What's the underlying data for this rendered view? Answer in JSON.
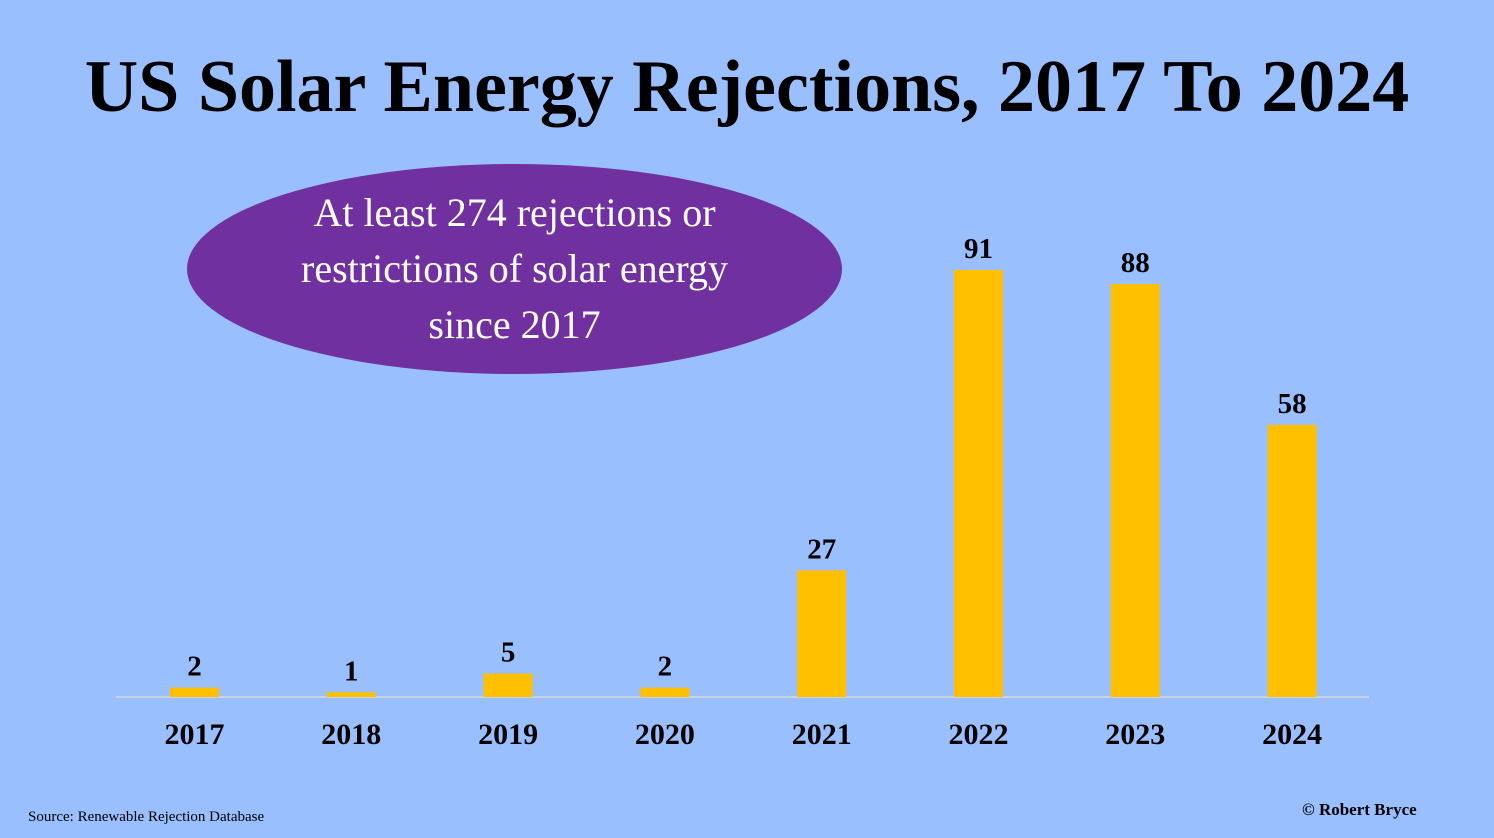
{
  "chart_data": {
    "type": "bar",
    "title": "US Solar Energy Rejections, 2017 To 2024",
    "categories": [
      "2017",
      "2018",
      "2019",
      "2020",
      "2021",
      "2022",
      "2023",
      "2024"
    ],
    "values": [
      2,
      1,
      5,
      2,
      27,
      91,
      88,
      58
    ],
    "ylim": [
      0,
      91
    ],
    "bar_color": "#ffc000",
    "axis_color": "#d9d9d9",
    "grid": false,
    "legend": "none",
    "annotation": "At least 274 rejections or restrictions of solar energy since 2017"
  },
  "colors": {
    "background": "#99bfff",
    "callout": "#7030a0"
  },
  "source": "Source: Renewable Rejection Database",
  "credit": "© Robert Bryce"
}
